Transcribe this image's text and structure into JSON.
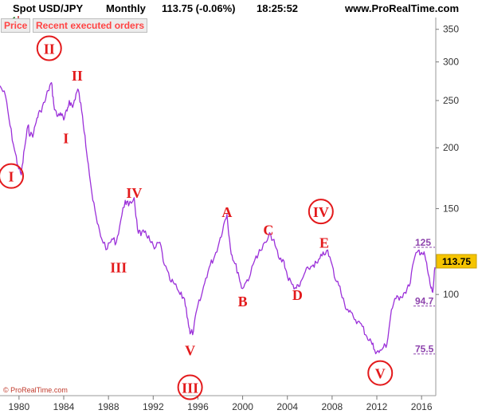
{
  "header": {
    "title": "Spot USD/JPY",
    "period": "Monthly",
    "quote": "113.75 (-0.06%)",
    "time": "18:25:52",
    "site": "www.ProRealTime.com",
    "icon": "bar-chart-icon"
  },
  "toolbar": {
    "price_label": "Price",
    "orders_label": "Recent executed orders"
  },
  "copyright": "© ProRealTime.com",
  "chart_data": {
    "type": "line",
    "title": "Spot USD/JPY",
    "xlabel": "",
    "ylabel": "",
    "ylim": [
      62,
      370
    ],
    "y_scale": "log",
    "xlim": [
      1978.3,
      2017.2
    ],
    "grid": false,
    "x_ticks": [
      "1980",
      "1984",
      "1988",
      "1992",
      "1996",
      "2000",
      "2004",
      "2008",
      "2012",
      "2016"
    ],
    "y_ticks": [
      "350",
      "300",
      "250",
      "200",
      "150",
      "100"
    ],
    "last_price": "113.75",
    "price_colors": {
      "line": "#9b30d9",
      "last_price_bg": "#f5c400",
      "label": "#e31a1c",
      "level": "#8e44ad"
    },
    "series": [
      {
        "x": [
          1978.3,
          1978.8,
          1979.2,
          1979.6,
          1979.9,
          1980.2,
          1980.5,
          1980.8,
          1981.0,
          1981.3,
          1981.6,
          1981.9,
          1982.3,
          1982.6,
          1982.9,
          1983.1,
          1983.4,
          1983.7,
          1984.0,
          1984.3,
          1984.5,
          1984.8,
          1985.1,
          1985.3,
          1985.6,
          1985.9,
          1986.2,
          1986.6,
          1987.0,
          1987.4,
          1987.9,
          1988.3,
          1988.7,
          1989.1,
          1989.5,
          1989.8,
          1990.3,
          1990.6,
          1990.9,
          1991.3,
          1991.7,
          1992.1,
          1992.6,
          1993.0,
          1993.5,
          1993.9,
          1994.4,
          1994.8,
          1995.1,
          1995.3,
          1995.6,
          1995.9,
          1996.3,
          1996.7,
          1997.1,
          1997.5,
          1997.9,
          1998.3,
          1998.6,
          1998.9,
          1999.2,
          1999.6,
          1999.9,
          2000.3,
          2000.7,
          2001.2,
          2001.6,
          2002.1,
          2002.5,
          2002.9,
          2003.3,
          2003.7,
          2004.0,
          2004.4,
          2004.8,
          2005.1,
          2005.5,
          2005.9,
          2006.3,
          2006.7,
          2007.1,
          2007.5,
          2007.9,
          2008.3,
          2008.7,
          2009.1,
          2009.5,
          2009.9,
          2010.3,
          2010.7,
          2011.1,
          2011.5,
          2011.8,
          2012.2,
          2012.6,
          2012.9,
          2013.3,
          2013.7,
          2014.1,
          2014.5,
          2014.9,
          2015.3,
          2015.7,
          2016.0,
          2016.3,
          2016.6,
          2016.8,
          2017.0,
          2017.2
        ],
        "y": [
          268,
          255,
          222,
          198,
          184,
          176,
          200,
          222,
          212,
          214,
          230,
          238,
          248,
          262,
          272,
          246,
          232,
          236,
          228,
          238,
          250,
          242,
          258,
          263,
          238,
          212,
          185,
          156,
          140,
          130,
          124,
          130,
          128,
          142,
          156,
          152,
          158,
          136,
          132,
          135,
          129,
          124,
          128,
          115,
          107,
          105,
          100,
          98,
          89,
          83,
          84,
          93,
          99,
          108,
          115,
          120,
          128,
          139,
          146,
          125,
          117,
          111,
          103,
          106,
          110,
          120,
          123,
          128,
          133,
          126,
          118,
          117,
          109,
          105,
          103,
          104,
          110,
          113,
          115,
          116,
          120,
          123,
          117,
          107,
          104,
          96,
          92,
          90,
          88,
          86,
          82,
          80,
          77,
          76,
          78,
          79,
          93,
          98,
          99,
          101,
          104,
          117,
          123,
          122,
          120,
          110,
          104,
          101,
          113.75
        ]
      }
    ],
    "wave_labels": [
      {
        "text": "I",
        "x": 1979.3,
        "y": 175,
        "circled": true
      },
      {
        "text": "II",
        "x": 1982.7,
        "y": 320,
        "circled": true
      },
      {
        "text": "II",
        "x": 1985.2,
        "y": 282,
        "circled": false
      },
      {
        "text": "I",
        "x": 1984.2,
        "y": 210,
        "circled": false
      },
      {
        "text": "III",
        "x": 1988.9,
        "y": 114,
        "circled": false
      },
      {
        "text": "IV",
        "x": 1990.3,
        "y": 162,
        "circled": false
      },
      {
        "text": "V",
        "x": 1995.3,
        "y": 77,
        "circled": false
      },
      {
        "text": "III",
        "x": 1995.3,
        "y": 64.5,
        "circled": true
      },
      {
        "text": "A",
        "x": 1998.6,
        "y": 148,
        "circled": false
      },
      {
        "text": "B",
        "x": 2000.0,
        "y": 97,
        "circled": false
      },
      {
        "text": "C",
        "x": 2002.3,
        "y": 136,
        "circled": false
      },
      {
        "text": "D",
        "x": 2004.9,
        "y": 100,
        "circled": false
      },
      {
        "text": "IV",
        "x": 2007.0,
        "y": 148,
        "circled": true
      },
      {
        "text": "E",
        "x": 2007.3,
        "y": 128,
        "circled": false
      },
      {
        "text": "V",
        "x": 2012.3,
        "y": 69,
        "circled": true
      }
    ],
    "levels": [
      {
        "label": "125",
        "y": 125
      },
      {
        "label": "94.7",
        "y": 94.7
      },
      {
        "label": "75.5",
        "y": 75.5
      }
    ]
  }
}
